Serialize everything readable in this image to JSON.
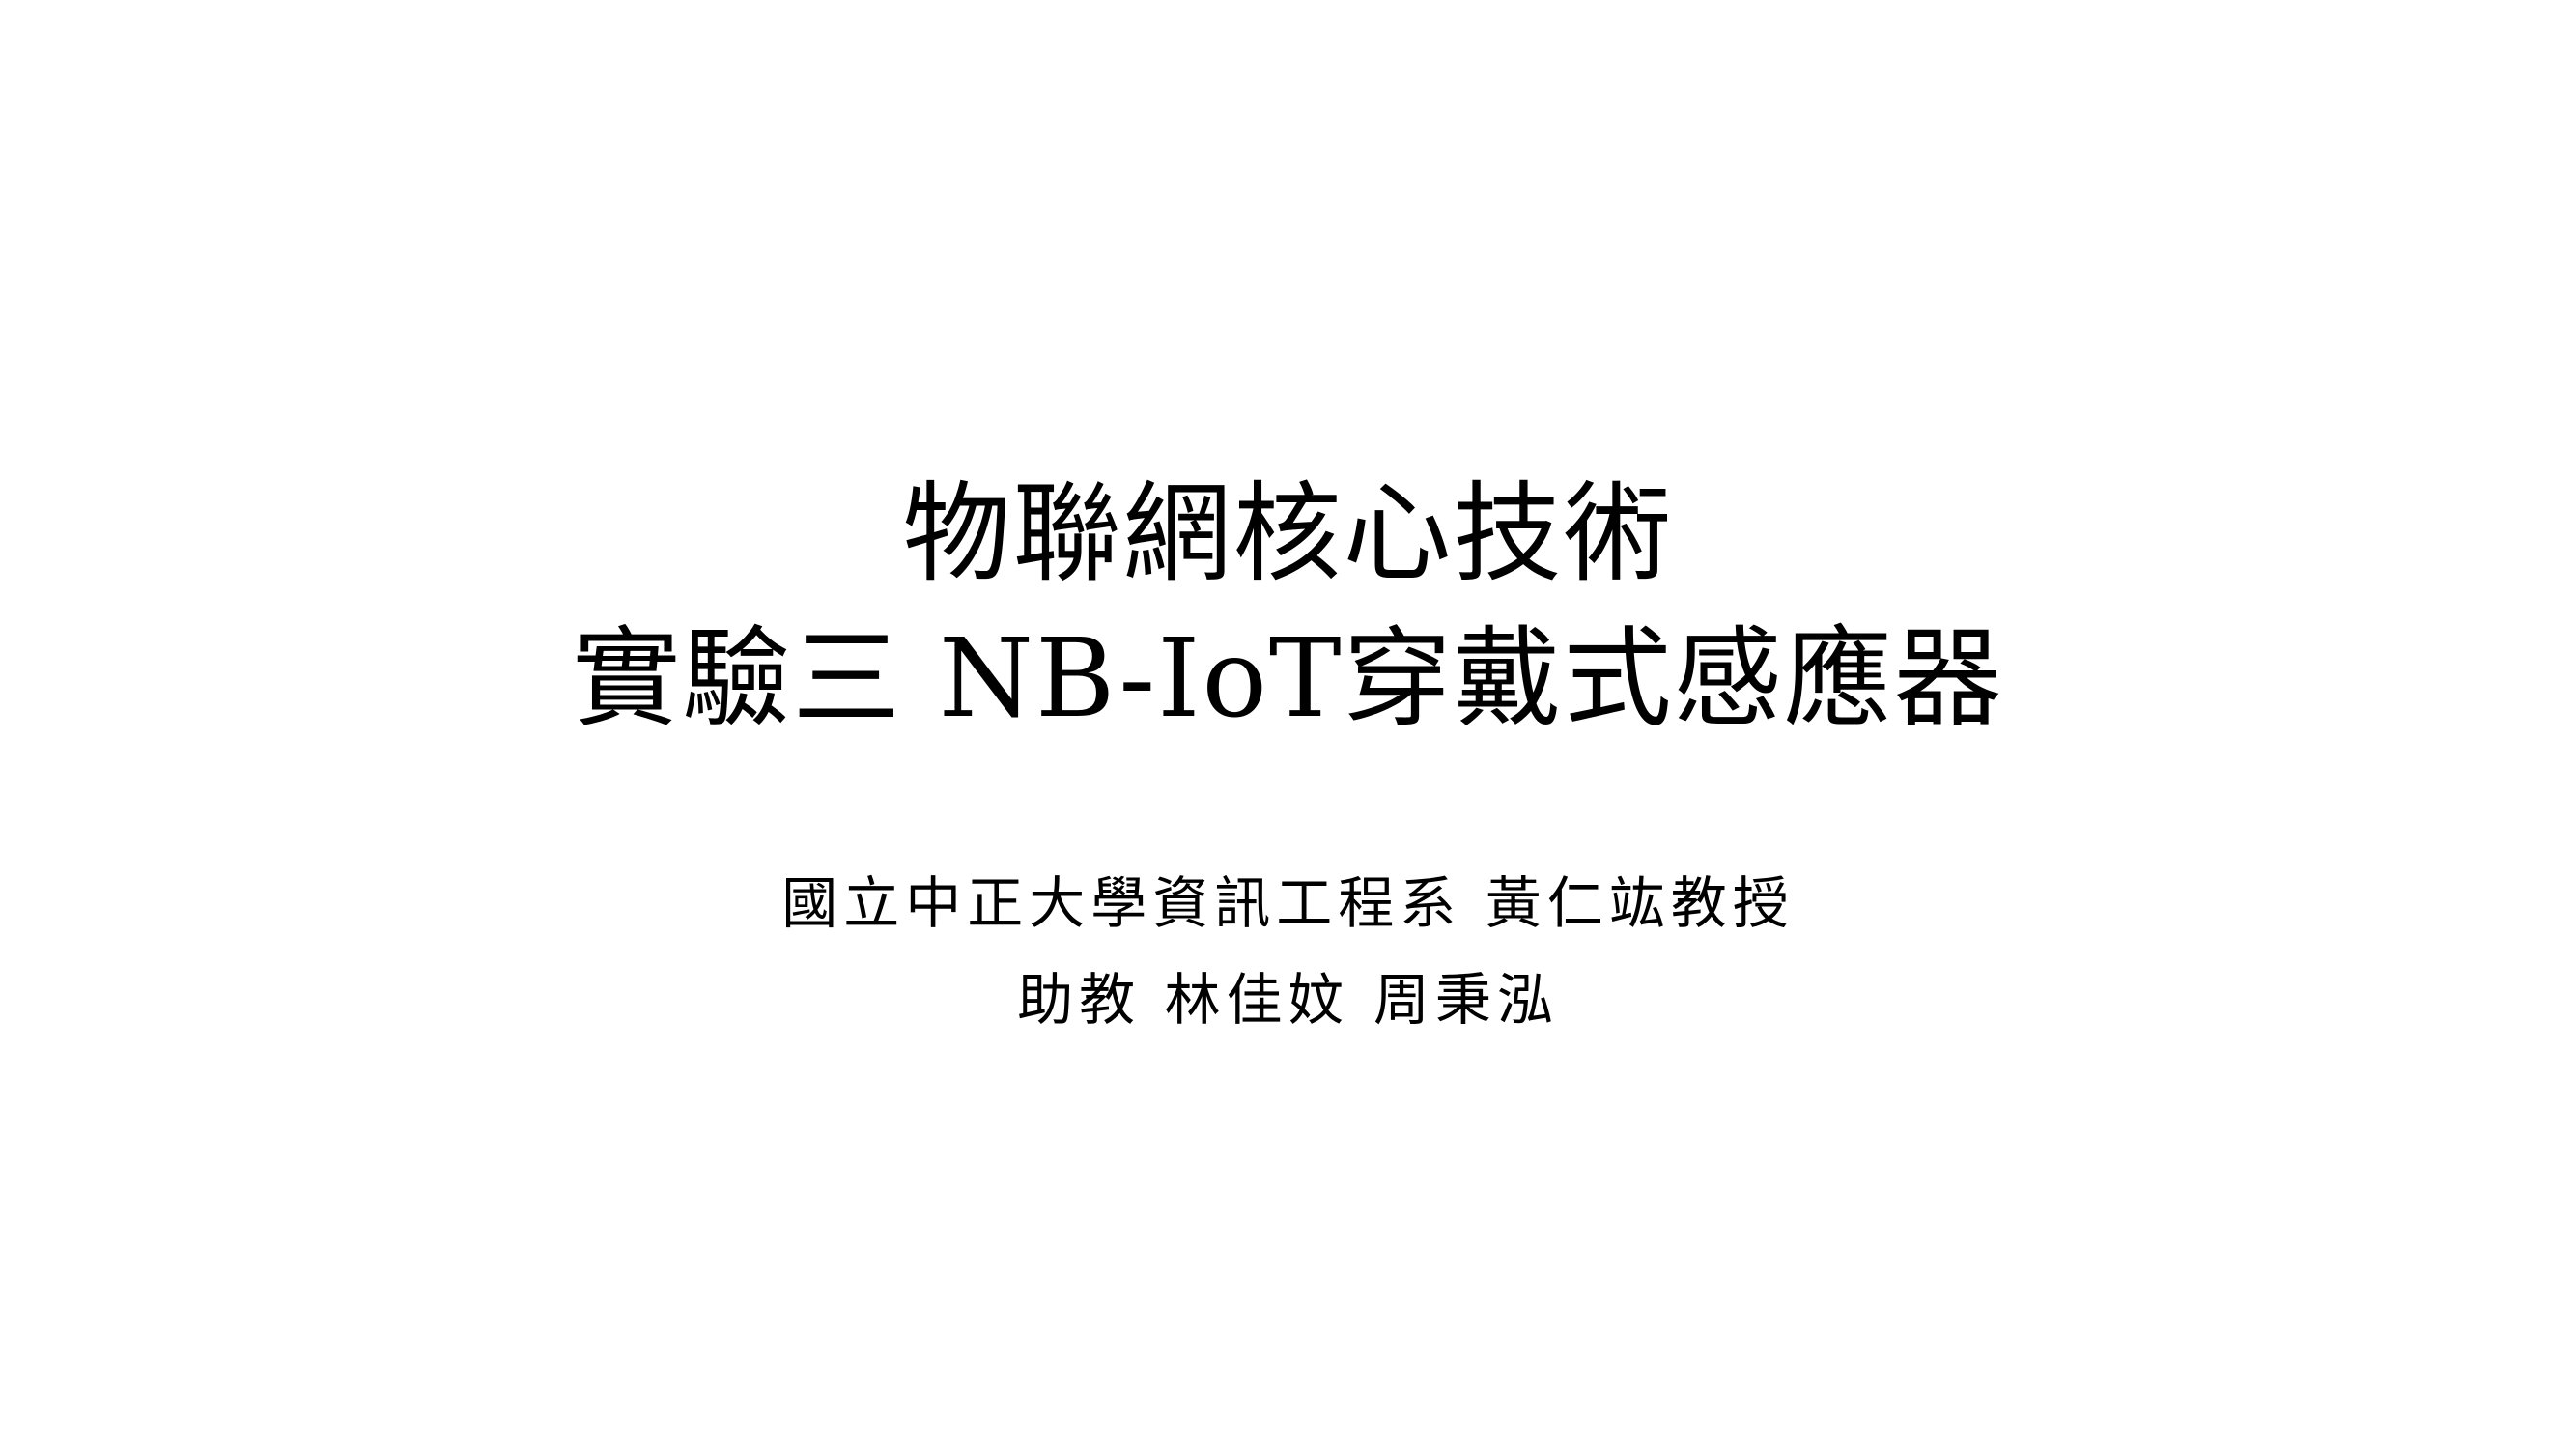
{
  "slide": {
    "title": {
      "line1": "物聯網核心技術",
      "line2": "實驗三 NB-IoT穿戴式感應器"
    },
    "subtitle": {
      "affiliation": "國立中正大學資訊工程系 黃仁竑教授",
      "assistants": "助教 林佳妏 周秉泓"
    },
    "colors": {
      "background": "#ffffff",
      "text": "#000000"
    }
  }
}
